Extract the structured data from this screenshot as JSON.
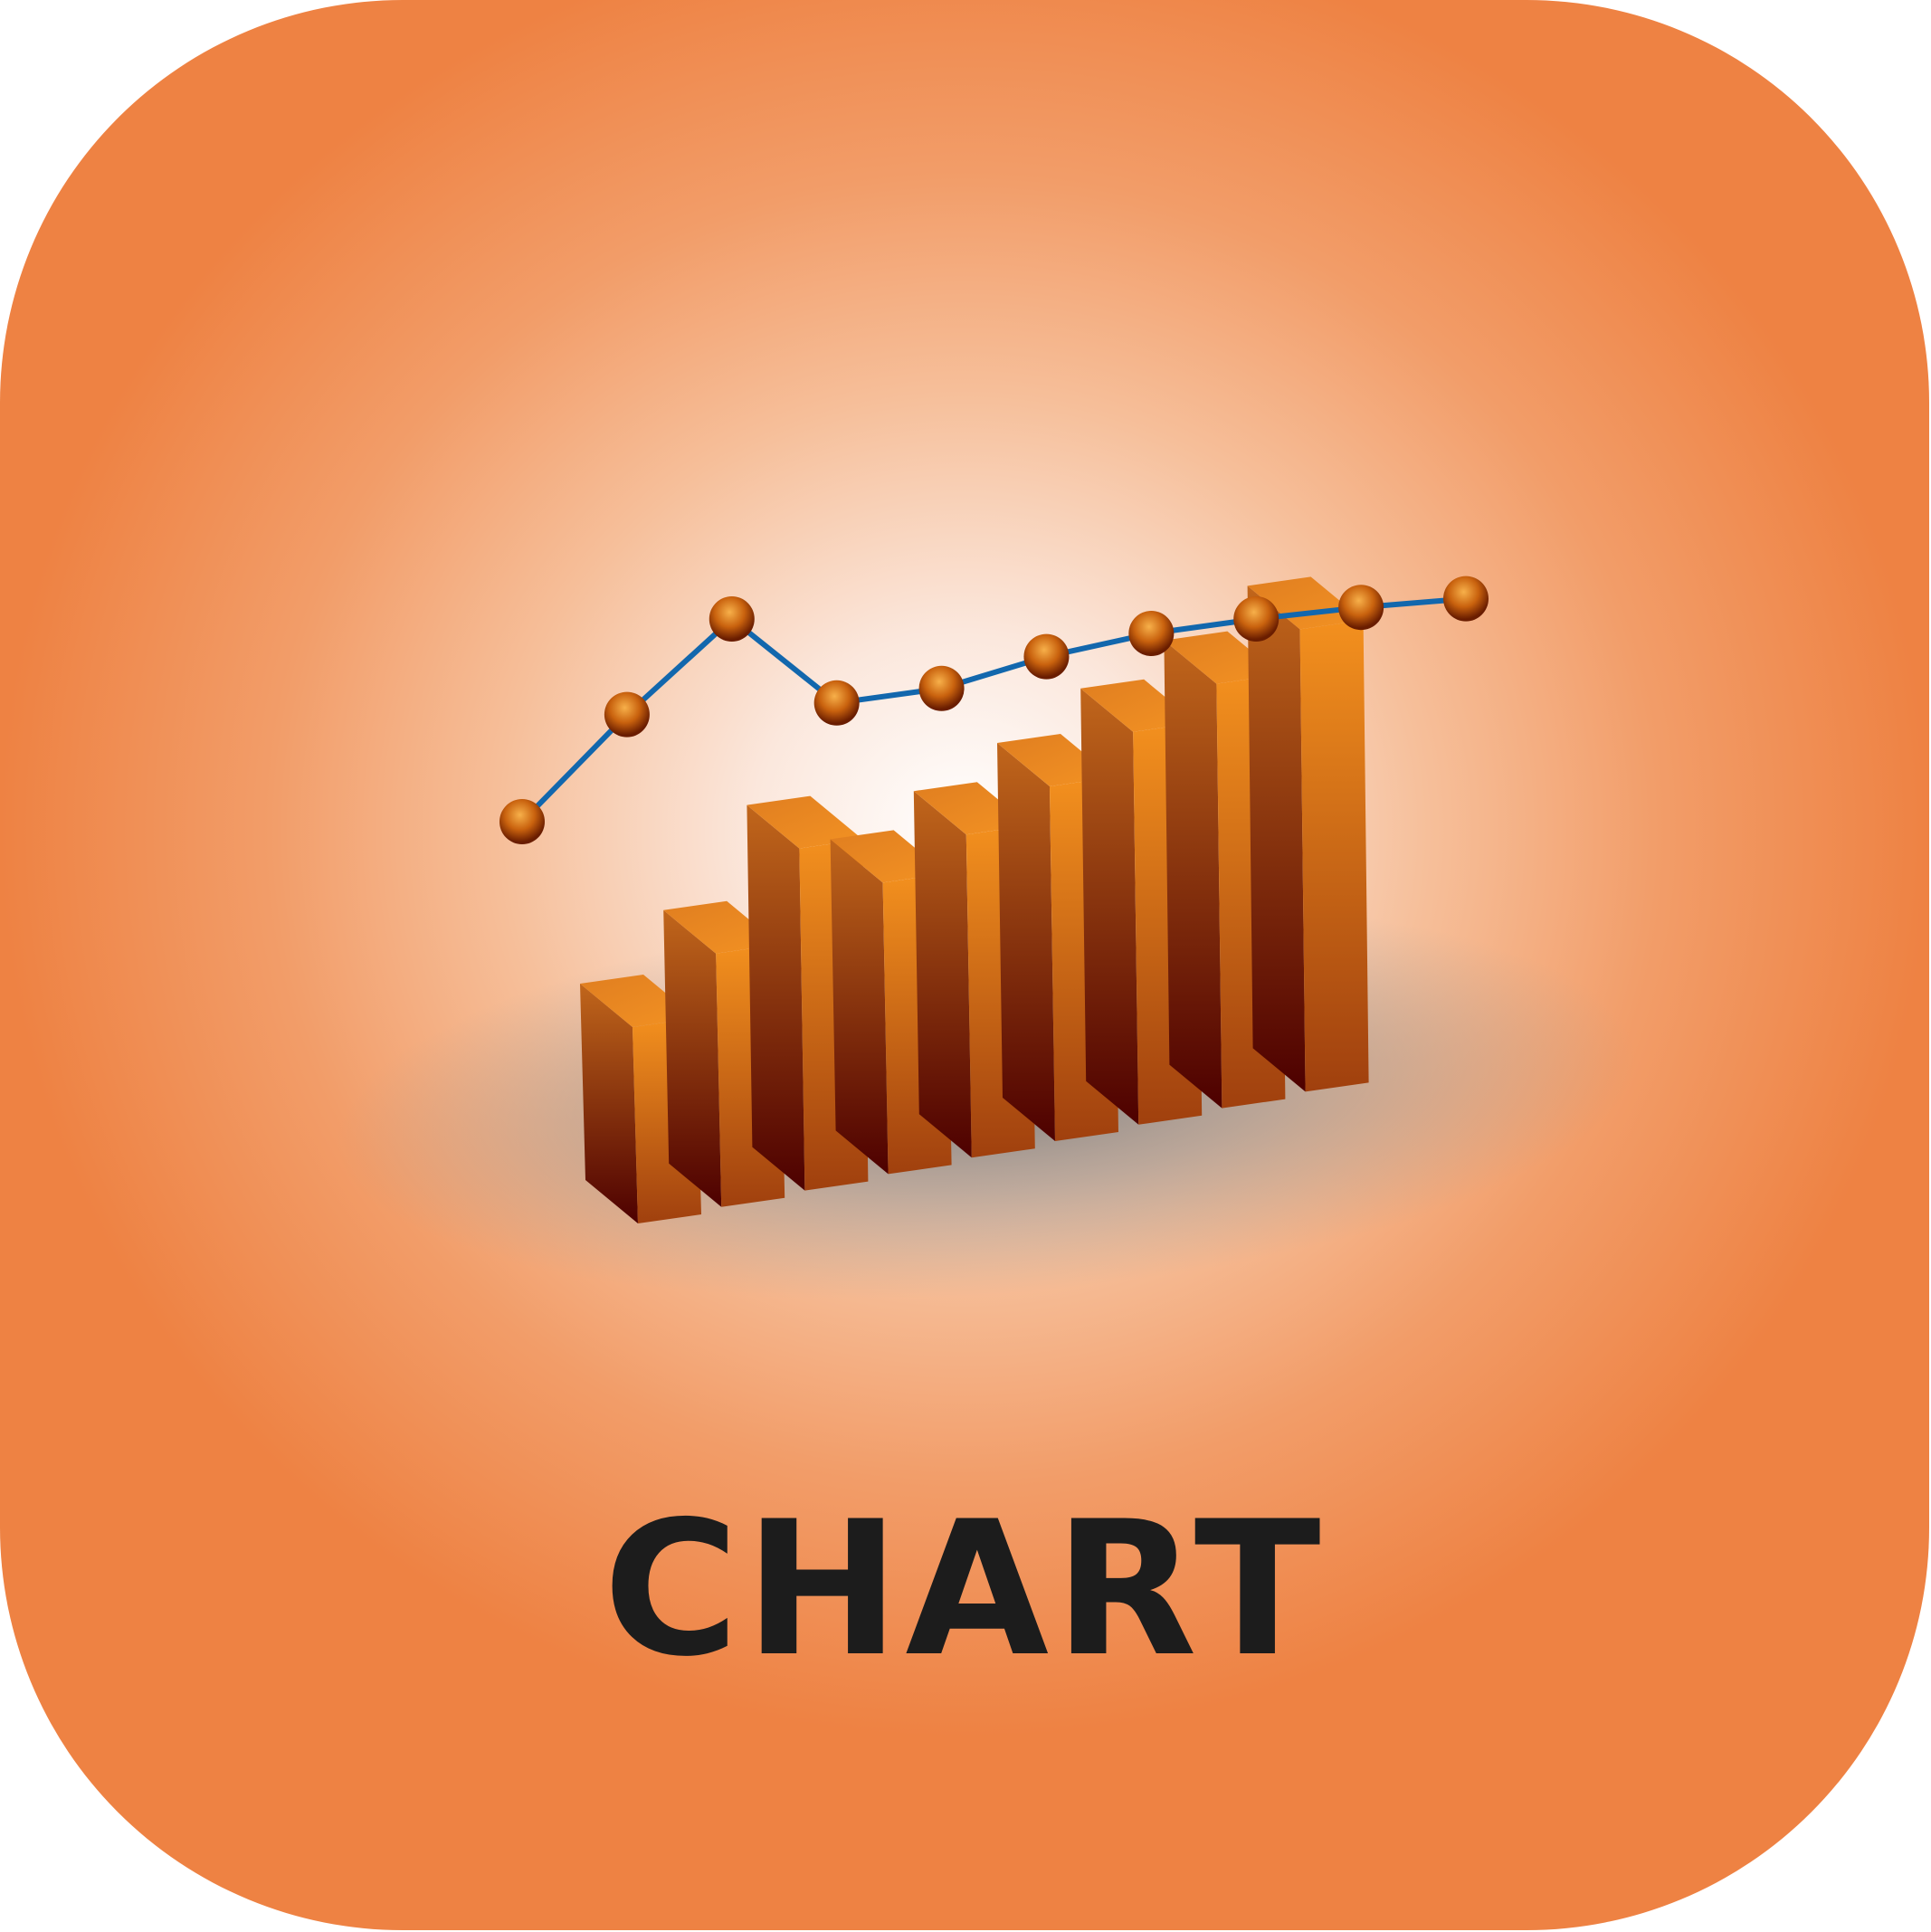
{
  "icon": {
    "label": "CHART",
    "background_color": "#ee8243",
    "center_glow_color": "#ffffff",
    "label_color": "#1c1c1c"
  },
  "illustration": {
    "description_icon": "3d-bar-chart-with-trend-line-icon",
    "bar_count": 9,
    "marker_count": 10,
    "bar_heights": [
      0.31,
      0.4,
      0.54,
      0.46,
      0.51,
      0.56,
      0.62,
      0.67,
      0.73
    ],
    "trend_values": [
      0.0,
      0.37,
      0.7,
      0.41,
      0.46,
      0.57,
      0.65,
      0.7,
      0.74,
      0.77
    ],
    "colors": {
      "bar_top": "#ee8a22",
      "bar_front_light": "#f3901e",
      "bar_front_dark": "#a0400e",
      "bar_side_light": "#c1661b",
      "bar_side_dark": "#4d0000",
      "line": "#1267ad",
      "marker_light": "#f7b04a",
      "marker_dark": "#6a1d00"
    }
  }
}
